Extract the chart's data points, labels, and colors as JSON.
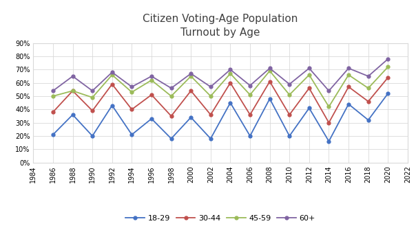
{
  "title": "Citizen Voting-Age Population\nTurnout by Age",
  "years": [
    1984,
    1986,
    1988,
    1990,
    1992,
    1994,
    1996,
    1998,
    2000,
    2002,
    2004,
    2006,
    2008,
    2010,
    2012,
    2014,
    2016,
    2018,
    2020
  ],
  "series": {
    "18-29": [
      null,
      0.21,
      0.36,
      0.2,
      0.43,
      0.21,
      0.33,
      0.18,
      0.34,
      0.18,
      0.45,
      0.2,
      0.48,
      0.2,
      0.41,
      0.16,
      0.44,
      0.32,
      0.52
    ],
    "30-44": [
      null,
      0.38,
      0.54,
      0.39,
      0.59,
      0.4,
      0.51,
      0.35,
      0.54,
      0.36,
      0.6,
      0.36,
      0.61,
      0.36,
      0.56,
      0.3,
      0.57,
      0.46,
      0.64
    ],
    "45-59": [
      null,
      0.5,
      0.54,
      0.49,
      0.66,
      0.53,
      0.62,
      0.5,
      0.65,
      0.5,
      0.67,
      0.51,
      0.69,
      0.51,
      0.66,
      0.42,
      0.66,
      0.56,
      0.72
    ],
    "60+": [
      null,
      0.54,
      0.65,
      0.54,
      0.68,
      0.57,
      0.65,
      0.56,
      0.67,
      0.57,
      0.7,
      0.58,
      0.71,
      0.59,
      0.71,
      0.54,
      0.71,
      0.65,
      0.78
    ]
  },
  "colors": {
    "18-29": "#4472C4",
    "30-44": "#C0504D",
    "45-59": "#9BBB59",
    "60+": "#8064A2"
  },
  "xlim": [
    1984,
    2022
  ],
  "ylim": [
    0.0,
    0.9
  ],
  "yticks": [
    0.0,
    0.1,
    0.2,
    0.3,
    0.4,
    0.5,
    0.6,
    0.7,
    0.8,
    0.9
  ],
  "xticks": [
    1984,
    1986,
    1988,
    1990,
    1992,
    1994,
    1996,
    1998,
    2000,
    2002,
    2004,
    2006,
    2008,
    2010,
    2012,
    2014,
    2016,
    2018,
    2020,
    2022
  ],
  "background_color": "#FFFFFF",
  "title_fontsize": 11,
  "legend_fontsize": 8,
  "tick_fontsize": 7,
  "grid_color": "#D9D9D9",
  "spine_color": "#D9D9D9"
}
